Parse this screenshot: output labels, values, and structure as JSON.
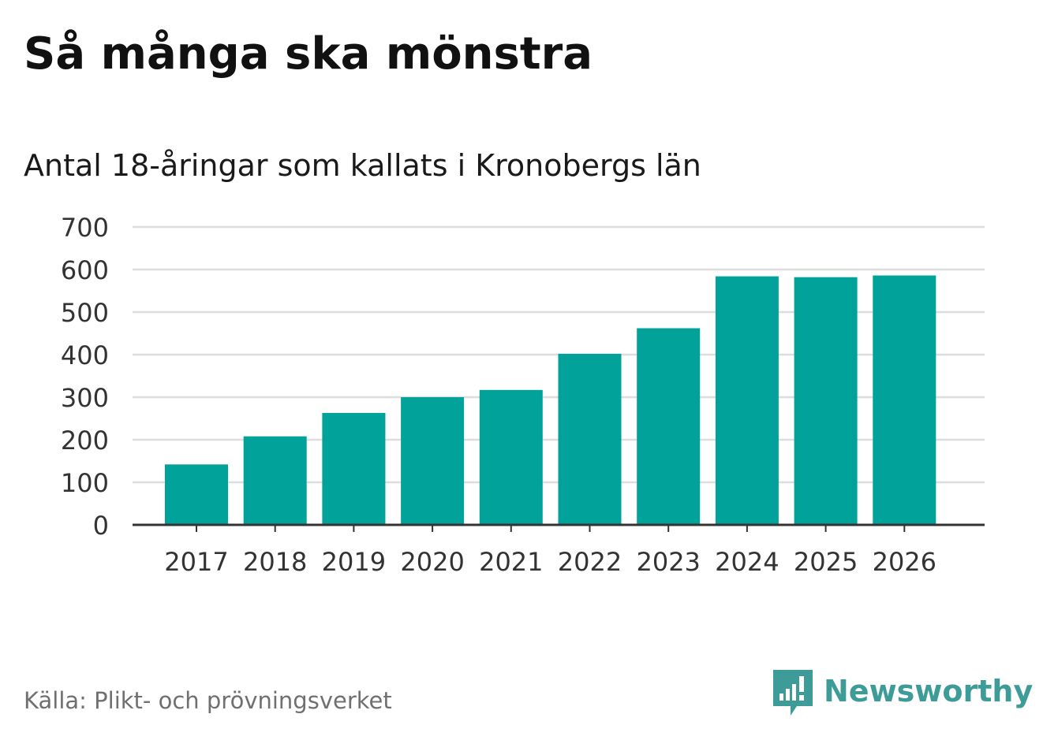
{
  "header": {
    "title": "Så många ska mönstra"
  },
  "chart_data": {
    "type": "bar",
    "title": "Så många ska mönstra",
    "subtitle": "Antal 18-åringar som kallats i Kronobergs län",
    "xlabel": "",
    "ylabel": "",
    "categories": [
      "2017",
      "2018",
      "2019",
      "2020",
      "2021",
      "2022",
      "2023",
      "2024",
      "2025",
      "2026"
    ],
    "values": [
      142,
      208,
      263,
      300,
      317,
      402,
      462,
      584,
      582,
      586
    ],
    "ylim": [
      0,
      700
    ],
    "yticks": [
      0,
      100,
      200,
      300,
      400,
      500,
      600,
      700
    ],
    "grid": true,
    "bar_color": "#00a29a"
  },
  "footer": {
    "source": "Källa: Plikt- och prövningsverket",
    "brand": "Newsworthy",
    "brand_color": "#3e9c98"
  }
}
